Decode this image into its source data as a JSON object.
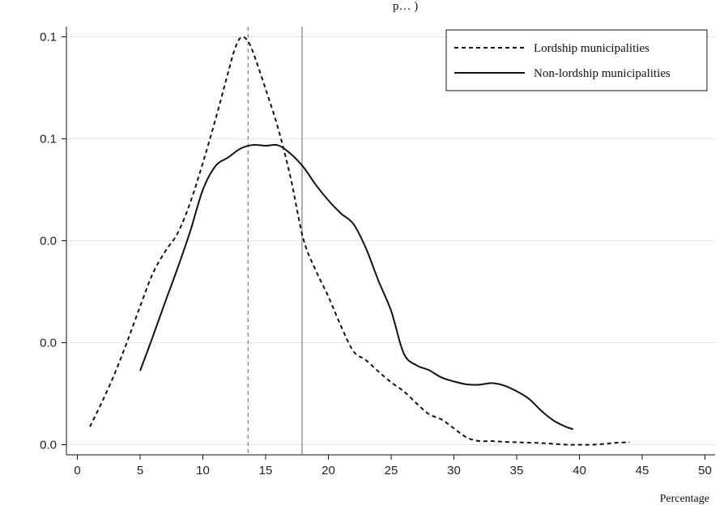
{
  "header_fragment": "p… )",
  "chart_data": {
    "type": "line",
    "title": "",
    "xlabel": "Percentage",
    "ylabel": "",
    "xlim": [
      0,
      50
    ],
    "ylim": [
      -0.005,
      0.1
    ],
    "x_ticks": [
      0,
      5,
      10,
      15,
      20,
      25,
      30,
      35,
      40,
      45,
      50
    ],
    "y_ticks": [
      {
        "value": 0.0,
        "label": "0.0"
      },
      {
        "value": 0.025,
        "label": "0.0"
      },
      {
        "value": 0.05,
        "label": "0.0"
      },
      {
        "value": 0.075,
        "label": "0.1"
      },
      {
        "value": 0.1,
        "label": "0.1"
      }
    ],
    "grid": "horizontal",
    "legend_position": "top-right",
    "series": [
      {
        "name": "Lordship municipalities",
        "style": "dashed",
        "color": "#111111",
        "x": [
          1,
          2,
          3,
          4,
          5,
          6,
          7,
          8,
          9,
          10,
          11,
          12,
          12.5,
          13,
          13.5,
          14,
          15,
          16,
          17,
          18,
          19,
          20,
          21,
          22,
          23,
          24,
          25,
          26,
          27,
          28,
          29,
          30,
          31,
          32,
          33,
          34,
          35,
          36,
          37,
          38,
          39,
          40,
          41,
          42,
          43,
          44
        ],
        "y": [
          0.0044,
          0.0107,
          0.0176,
          0.0255,
          0.0339,
          0.0419,
          0.0474,
          0.0519,
          0.0594,
          0.0691,
          0.0797,
          0.0911,
          0.0966,
          0.0998,
          0.0993,
          0.0962,
          0.0872,
          0.0775,
          0.0653,
          0.0505,
          0.0427,
          0.0363,
          0.0291,
          0.0229,
          0.0207,
          0.0179,
          0.0153,
          0.0131,
          0.0102,
          0.0075,
          0.0062,
          0.004,
          0.0018,
          0.0009,
          0.0009,
          0.0007,
          0.0006,
          0.0005,
          0.0004,
          0.0002,
          0.0,
          0.0,
          0.0,
          0.0002,
          0.0005,
          0.0006
        ]
      },
      {
        "name": "Non-lordship municipalities",
        "style": "solid",
        "color": "#111111",
        "x": [
          5,
          6,
          7,
          8,
          9,
          10,
          11,
          12,
          13,
          14,
          15,
          16,
          17,
          18,
          19,
          20,
          21,
          22,
          23,
          24,
          25,
          26,
          27,
          28,
          29,
          30,
          31,
          32,
          33,
          34,
          35,
          36,
          37,
          38,
          39,
          39.5
        ],
        "y": [
          0.0181,
          0.0264,
          0.035,
          0.0434,
          0.0524,
          0.0625,
          0.0683,
          0.0704,
          0.0726,
          0.0735,
          0.0733,
          0.0734,
          0.0713,
          0.0681,
          0.0637,
          0.0599,
          0.0567,
          0.0541,
          0.0481,
          0.0401,
          0.0328,
          0.0224,
          0.0195,
          0.0183,
          0.0165,
          0.0155,
          0.0148,
          0.0147,
          0.0151,
          0.0145,
          0.0131,
          0.0112,
          0.0082,
          0.0058,
          0.0043,
          0.0038
        ]
      }
    ],
    "reference_lines": [
      {
        "x": 13.6,
        "style": "dashed",
        "color": "#888888"
      },
      {
        "x": 17.9,
        "style": "solid",
        "color": "#888888"
      }
    ]
  }
}
